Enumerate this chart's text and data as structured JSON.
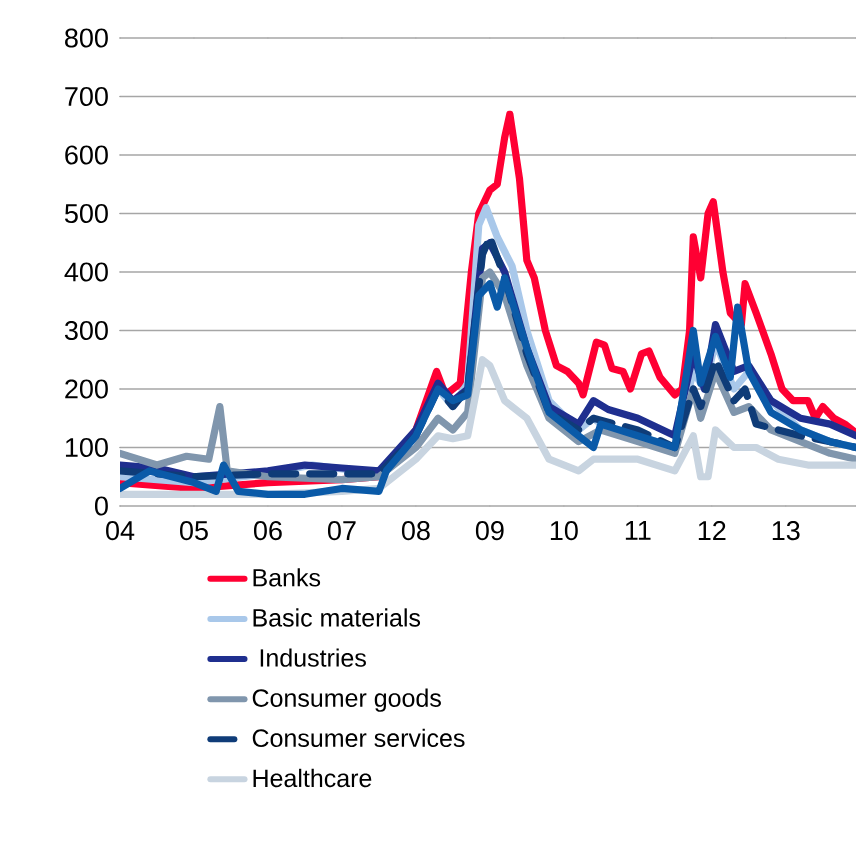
{
  "chart_data": {
    "type": "line",
    "xlim": [
      2004,
      2013.95
    ],
    "ylim": [
      0,
      800
    ],
    "xticks": [
      {
        "value": 2004,
        "label": "04"
      },
      {
        "value": 2005,
        "label": "05"
      },
      {
        "value": 2006,
        "label": "06"
      },
      {
        "value": 2007,
        "label": "07"
      },
      {
        "value": 2008,
        "label": "08"
      },
      {
        "value": 2009,
        "label": "09"
      },
      {
        "value": 2010,
        "label": "10"
      },
      {
        "value": 2011,
        "label": "11"
      },
      {
        "value": 2012,
        "label": "12"
      },
      {
        "value": 2013,
        "label": "13"
      }
    ],
    "yticks": [
      0,
      100,
      200,
      300,
      400,
      500,
      600,
      700,
      800
    ],
    "grid": "y",
    "legend": "bottom",
    "marker": "none",
    "series": [
      {
        "name": "Banks",
        "color": "#ff0033",
        "x": [
          2004,
          2005,
          2006,
          2007,
          2007.5,
          2008,
          2008.28,
          2008.4,
          2008.6,
          2008.75,
          2008.85,
          2009.0,
          2009.1,
          2009.2,
          2009.27,
          2009.4,
          2009.5,
          2009.6,
          2009.75,
          2009.9,
          2010.05,
          2010.2,
          2010.26,
          2010.44,
          2010.55,
          2010.65,
          2010.8,
          2010.9,
          2011.05,
          2011.15,
          2011.3,
          2011.5,
          2011.6,
          2011.7,
          2011.75,
          2011.85,
          2011.95,
          2012.02,
          2012.15,
          2012.25,
          2012.4,
          2012.45,
          2012.6,
          2012.8,
          2012.95,
          2013.1,
          2013.3,
          2013.4,
          2013.5,
          2013.65,
          2013.8,
          2013.95
        ],
        "values": [
          40,
          30,
          40,
          45,
          50,
          130,
          230,
          190,
          210,
          400,
          500,
          540,
          550,
          630,
          670,
          560,
          420,
          390,
          300,
          240,
          230,
          210,
          190,
          280,
          275,
          235,
          230,
          200,
          260,
          265,
          220,
          190,
          200,
          300,
          460,
          390,
          500,
          520,
          400,
          330,
          310,
          380,
          330,
          260,
          200,
          180,
          180,
          150,
          170,
          150,
          140,
          125
        ]
      },
      {
        "name": "Basic materials",
        "color": "#a9c8ea",
        "x": [
          2004,
          2005,
          2006,
          2006.6,
          2007.5,
          2008,
          2008.3,
          2008.5,
          2008.7,
          2008.85,
          2008.95,
          2009.1,
          2009.3,
          2009.5,
          2009.8,
          2010.2,
          2010.4,
          2010.6,
          2011,
          2011.5,
          2011.75,
          2011.9,
          2012.05,
          2012.3,
          2012.5,
          2012.8,
          2013.2,
          2013.6,
          2013.95
        ],
        "values": [
          50,
          40,
          55,
          70,
          55,
          120,
          200,
          170,
          210,
          480,
          510,
          460,
          410,
          300,
          180,
          130,
          150,
          130,
          120,
          100,
          230,
          200,
          280,
          200,
          230,
          180,
          130,
          110,
          100
        ]
      },
      {
        "name": " Industries",
        "color": "#1f2f8f",
        "x": [
          2004,
          2004.5,
          2005,
          2005.5,
          2006,
          2006.5,
          2007,
          2007.5,
          2008,
          2008.3,
          2008.5,
          2008.7,
          2008.9,
          2009.0,
          2009.2,
          2009.5,
          2009.8,
          2010.2,
          2010.4,
          2010.6,
          2011,
          2011.5,
          2011.75,
          2011.9,
          2012.05,
          2012.3,
          2012.5,
          2012.8,
          2013.2,
          2013.6,
          2013.95
        ],
        "values": [
          70,
          65,
          50,
          55,
          60,
          70,
          65,
          60,
          130,
          210,
          180,
          200,
          440,
          450,
          400,
          270,
          170,
          140,
          180,
          165,
          150,
          120,
          260,
          200,
          310,
          230,
          240,
          180,
          150,
          140,
          120
        ]
      },
      {
        "name": "Consumer goods",
        "color": "#8096ad",
        "x": [
          2004,
          2004.5,
          2004.9,
          2005.2,
          2005.35,
          2005.45,
          2006,
          2007,
          2007.5,
          2008,
          2008.3,
          2008.5,
          2008.7,
          2008.9,
          2009.0,
          2009.2,
          2009.5,
          2009.8,
          2010.2,
          2010.5,
          2011,
          2011.5,
          2011.75,
          2011.85,
          2012.05,
          2012.3,
          2012.5,
          2012.8,
          2013.2,
          2013.6,
          2013.95
        ],
        "values": [
          90,
          70,
          85,
          80,
          170,
          60,
          50,
          45,
          50,
          100,
          150,
          130,
          160,
          390,
          400,
          360,
          240,
          150,
          110,
          130,
          110,
          90,
          200,
          150,
          230,
          160,
          170,
          130,
          110,
          90,
          80
        ]
      },
      {
        "name": "Consumer services",
        "color": "#0f3c78",
        "line_style": "dashed",
        "x": [
          2004,
          2005,
          2006,
          2007,
          2007.5,
          2008,
          2008.3,
          2008.5,
          2008.7,
          2008.9,
          2009.0,
          2009.2,
          2009.5,
          2009.8,
          2010.2,
          2010.4,
          2011,
          2011.5,
          2011.75,
          2011.85,
          2012.05,
          2012.3,
          2012.45,
          2012.6,
          2013.2,
          2013.6,
          2013.95
        ],
        "values": [
          60,
          50,
          55,
          55,
          55,
          120,
          200,
          170,
          200,
          430,
          460,
          390,
          260,
          160,
          130,
          150,
          130,
          100,
          200,
          170,
          250,
          180,
          200,
          140,
          120,
          110,
          100
        ]
      },
      {
        "name": "Healthcare",
        "color": "#c8d4e0",
        "x": [
          2004,
          2005,
          2006,
          2007,
          2007.5,
          2008,
          2008.3,
          2008.5,
          2008.7,
          2008.9,
          2009.0,
          2009.2,
          2009.5,
          2009.8,
          2010.2,
          2010.4,
          2011,
          2011.5,
          2011.75,
          2011.85,
          2011.95,
          2012.05,
          2012.3,
          2012.6,
          2012.9,
          2013.3,
          2013.95
        ],
        "values": [
          20,
          20,
          20,
          25,
          30,
          80,
          120,
          115,
          120,
          250,
          240,
          180,
          150,
          80,
          60,
          80,
          80,
          60,
          120,
          50,
          50,
          130,
          100,
          100,
          80,
          70,
          70
        ]
      },
      {
        "color": "#0a5aa8",
        "x": [
          2004,
          2004.4,
          2005,
          2005.3,
          2005.4,
          2005.6,
          2006,
          2006.5,
          2007,
          2007.5,
          2007.6,
          2008,
          2008.3,
          2008.5,
          2008.7,
          2008.85,
          2009.0,
          2009.1,
          2009.2,
          2009.5,
          2009.8,
          2010.2,
          2010.4,
          2010.5,
          2011,
          2011.5,
          2011.75,
          2011.85,
          2012.05,
          2012.25,
          2012.35,
          2012.5,
          2012.8,
          2013.2,
          2013.6,
          2013.95
        ],
        "values": [
          30,
          60,
          40,
          25,
          70,
          25,
          20,
          20,
          30,
          25,
          60,
          120,
          200,
          180,
          190,
          360,
          380,
          340,
          390,
          270,
          160,
          120,
          100,
          140,
          120,
          100,
          300,
          210,
          290,
          220,
          340,
          230,
          160,
          130,
          110,
          100
        ]
      }
    ]
  }
}
